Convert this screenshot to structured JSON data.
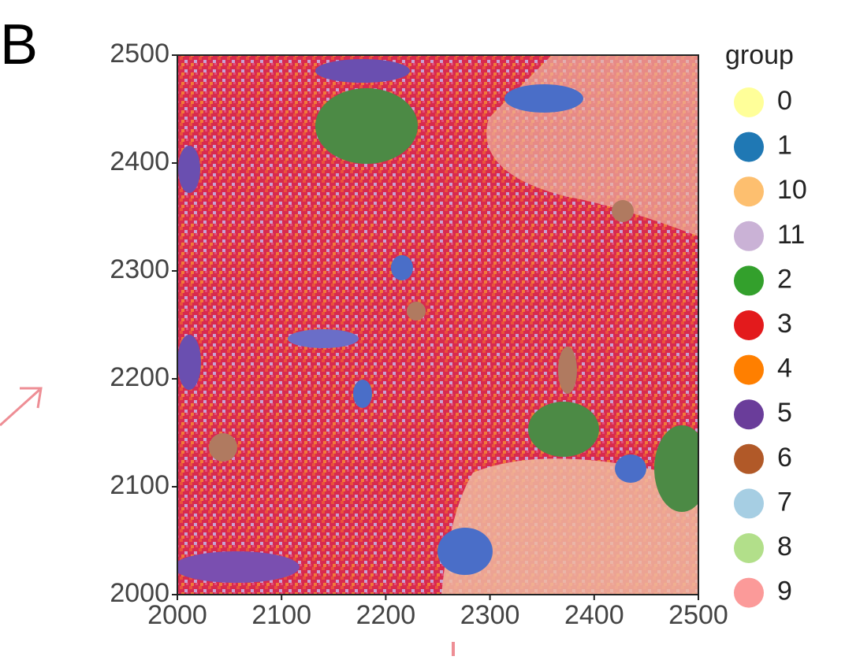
{
  "panel_label": "B",
  "chart_data": {
    "type": "scatter",
    "xlim": [
      2000,
      2500
    ],
    "ylim": [
      2000,
      2500
    ],
    "xticks": [
      2000,
      2100,
      2200,
      2300,
      2400,
      2500
    ],
    "yticks": [
      2000,
      2100,
      2200,
      2300,
      2400,
      2500
    ],
    "legend_title": "group",
    "series": [
      {
        "name": "0",
        "color": "#ffff99"
      },
      {
        "name": "1",
        "color": "#1f78b4"
      },
      {
        "name": "10",
        "color": "#fdbf6f"
      },
      {
        "name": "11",
        "color": "#cab2d6"
      },
      {
        "name": "2",
        "color": "#33a02c"
      },
      {
        "name": "3",
        "color": "#e31a1c"
      },
      {
        "name": "4",
        "color": "#ff7f00"
      },
      {
        "name": "5",
        "color": "#6a3d9a"
      },
      {
        "name": "6",
        "color": "#b15928"
      },
      {
        "name": "7",
        "color": "#a6cee3"
      },
      {
        "name": "8",
        "color": "#b2df8a"
      },
      {
        "name": "9",
        "color": "#fb9a99"
      }
    ]
  }
}
